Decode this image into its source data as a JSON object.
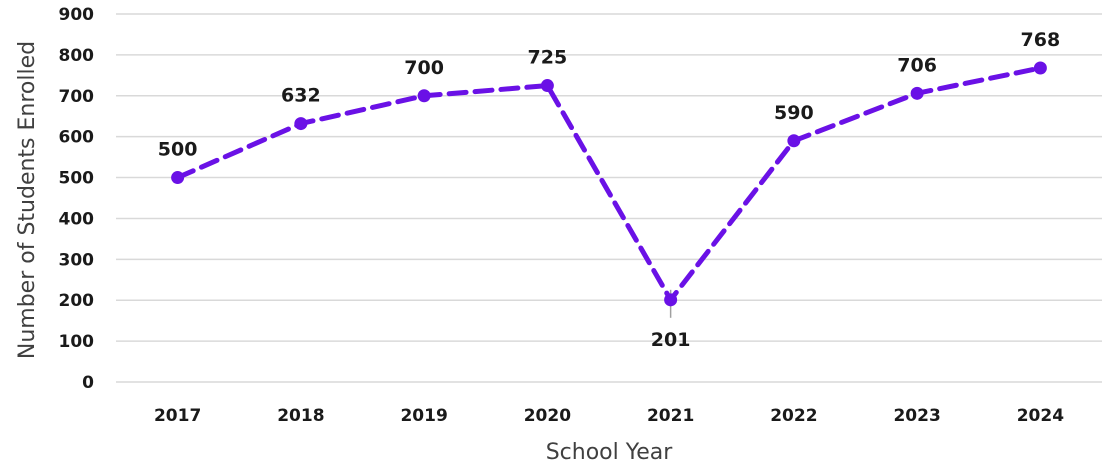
{
  "chart_data": {
    "type": "line",
    "title": "",
    "xlabel": "School Year",
    "ylabel": "Number of Students Enrolled",
    "categories": [
      "2017",
      "2018",
      "2019",
      "2020",
      "2021",
      "2022",
      "2023",
      "2024"
    ],
    "series": [
      {
        "values": [
          500,
          632,
          700,
          725,
          201,
          590,
          706,
          768
        ]
      }
    ],
    "data_labels": [
      "500",
      "632",
      "700",
      "725",
      "201",
      "590",
      "706",
      "768"
    ],
    "ylim": [
      0,
      900
    ],
    "yticks": [
      "0",
      "100",
      "200",
      "300",
      "400",
      "500",
      "600",
      "700",
      "800",
      "900"
    ],
    "grid": true,
    "line_style": "dashed",
    "markers": true,
    "legend": "none",
    "colors": {
      "series": "#6a11e6",
      "grid": "#d9d9d9",
      "text": "#1a1a1a",
      "axis_title": "#404040"
    }
  }
}
